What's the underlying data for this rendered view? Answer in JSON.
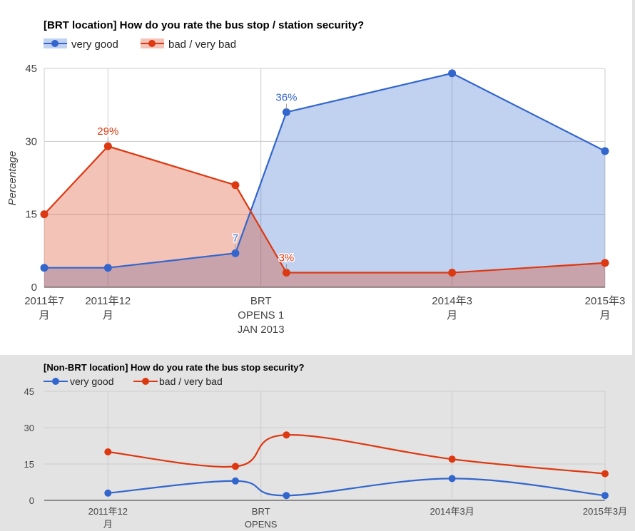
{
  "chart_data": [
    {
      "type": "area",
      "title": "[BRT location] How do you rate the bus stop / station security?",
      "ylabel": "Percentage",
      "xlabel": "",
      "ylim": [
        0,
        45
      ],
      "yticks": [
        "0",
        "15",
        "30",
        "45"
      ],
      "grid": true,
      "legend_position": "top",
      "x_tick_labels": [
        {
          "lines": [
            "2011年7",
            "月"
          ]
        },
        {
          "lines": [
            "2011年12",
            "月"
          ]
        },
        {
          "lines": [
            "BRT",
            "OPENS 1",
            "JAN 2013"
          ]
        },
        {
          "lines": [
            "2014年3",
            "月"
          ]
        },
        {
          "lines": [
            "2015年3",
            "月"
          ]
        }
      ],
      "x_points": [
        "2011-07",
        "2011-12",
        "2012-10",
        "2013-02",
        "2014-03",
        "2015-03"
      ],
      "series": [
        {
          "name": "very good",
          "color": "#3366cc",
          "values": [
            4,
            4,
            7,
            36,
            44,
            28
          ],
          "annotations": [
            {
              "index": 2,
              "text": "7"
            },
            {
              "index": 3,
              "text": "36%"
            }
          ]
        },
        {
          "name": "bad / very bad",
          "color": "#dc3912",
          "values": [
            15,
            29,
            21,
            3,
            3,
            5
          ],
          "annotations": [
            {
              "index": 1,
              "text": "29%"
            },
            {
              "index": 3,
              "text": "3%"
            }
          ]
        }
      ]
    },
    {
      "type": "line",
      "title": "[Non-BRT location] How do you rate the bus stop security?",
      "xlabel": "",
      "ylabel": "",
      "ylim": [
        0,
        45
      ],
      "yticks": [
        "0",
        "15",
        "30",
        "45"
      ],
      "grid": true,
      "legend_position": "top",
      "x_tick_labels": [
        {
          "lines": [
            "2011年12",
            "月"
          ]
        },
        {
          "lines": [
            "BRT",
            "OPENS"
          ]
        },
        {
          "lines": [
            "2014年3月"
          ]
        },
        {
          "lines": [
            "2015年3月"
          ]
        }
      ],
      "x_points": [
        "2011-12",
        "2012-10",
        "2013-02",
        "2014-03",
        "2015-03"
      ],
      "series": [
        {
          "name": "very good",
          "color": "#3366cc",
          "values": [
            3,
            8,
            2,
            9,
            2
          ]
        },
        {
          "name": "bad / very bad",
          "color": "#dc3912",
          "values": [
            20,
            14,
            27,
            17,
            11
          ]
        }
      ]
    }
  ]
}
